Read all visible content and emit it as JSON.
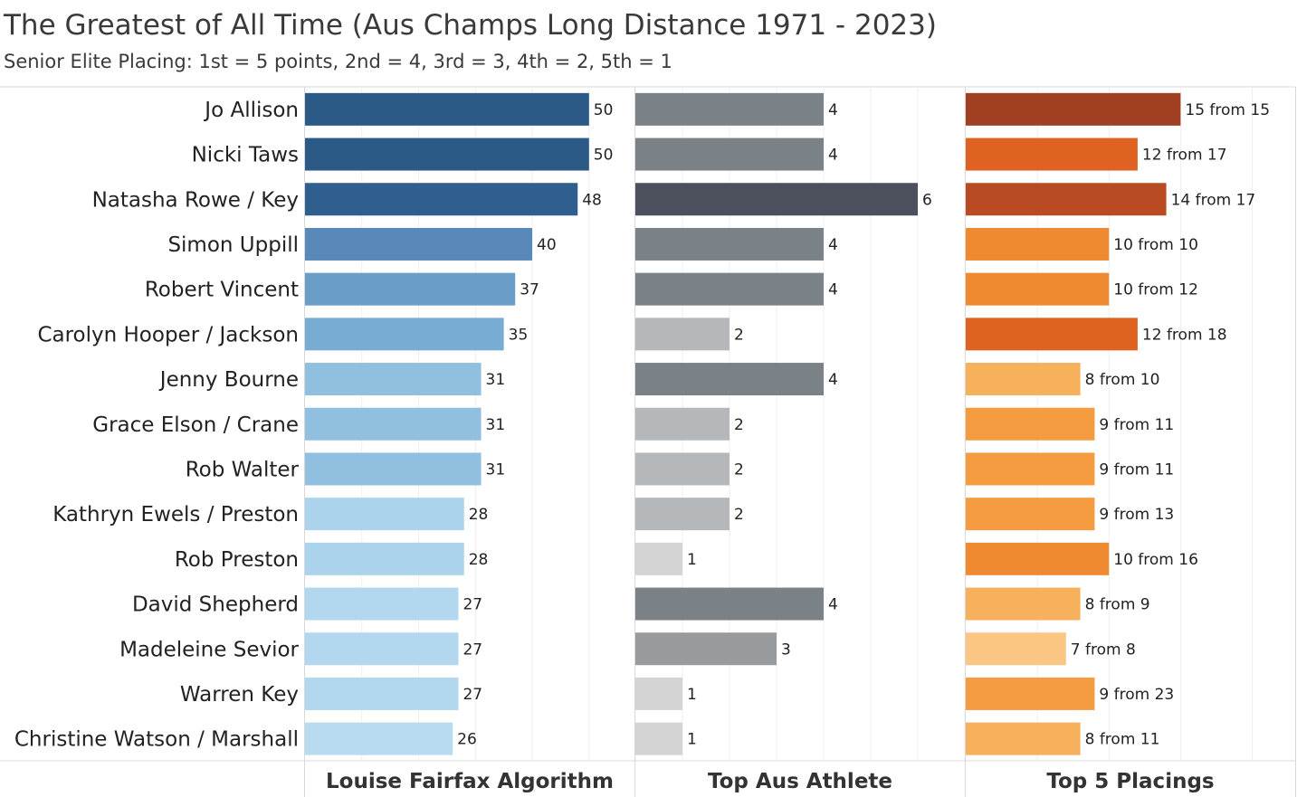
{
  "title": "The Greatest of All Time (Aus Champs Long Distance 1971 - 2023)",
  "subtitle": "Senior Elite Placing: 1st = 5 points, 2nd = 4, 3rd = 3, 4th = 2, 5th = 1",
  "chart_data": {
    "type": "bar",
    "orientation": "horizontal",
    "categories": [
      "Jo Allison",
      "Nicki Taws",
      "Natasha Rowe / Key",
      "Simon Uppill",
      "Robert Vincent",
      "Carolyn Hooper / Jackson",
      "Jenny Bourne",
      "Grace Elson / Crane",
      "Rob Walter",
      "Kathryn Ewels / Preston",
      "Rob Preston",
      "David Shepherd",
      "Madeleine Sevior",
      "Warren Key",
      "Christine Watson / Marshall"
    ],
    "series": [
      {
        "name": "Louise Fairfax Algorithm",
        "values": [
          50,
          50,
          48,
          40,
          37,
          35,
          31,
          31,
          31,
          28,
          28,
          27,
          27,
          27,
          26
        ],
        "labels": [
          "50",
          "50",
          "48",
          "40",
          "37",
          "35",
          "31",
          "31",
          "31",
          "28",
          "28",
          "27",
          "27",
          "27",
          "26"
        ],
        "xlim": [
          0,
          58
        ],
        "colors": [
          "#2b5a87",
          "#2b5a87",
          "#2f5f8e",
          "#5889b8",
          "#6a9ec8",
          "#78acd3",
          "#90bfe0",
          "#90bfe0",
          "#90bfe0",
          "#acd3ec",
          "#acd3ec",
          "#b2d7ee",
          "#b2d7ee",
          "#b2d7ee",
          "#b8dbf0"
        ]
      },
      {
        "name": "Top Aus Athlete",
        "values": [
          4,
          4,
          6,
          4,
          4,
          2,
          4,
          2,
          2,
          2,
          1,
          4,
          3,
          1,
          1
        ],
        "labels": [
          "4",
          "4",
          "6",
          "4",
          "4",
          "2",
          "4",
          "2",
          "2",
          "2",
          "1",
          "4",
          "3",
          "1",
          "1"
        ],
        "xlim": [
          0,
          7
        ],
        "colors": [
          "#7a8287",
          "#7a8287",
          "#4b505c",
          "#7a8287",
          "#7a8287",
          "#b5b8ba",
          "#7a8287",
          "#b5b8ba",
          "#b5b8ba",
          "#b5b8ba",
          "#d4d4d4",
          "#7a8287",
          "#979b9e",
          "#d4d4d4",
          "#d4d4d4"
        ]
      },
      {
        "name": "Top 5 Placings",
        "values": [
          15,
          12,
          14,
          10,
          10,
          12,
          8,
          9,
          9,
          9,
          10,
          8,
          7,
          9,
          8
        ],
        "labels": [
          "15 from 15",
          "12 from 17",
          "14 from 17",
          "10 from 10",
          "10 from 12",
          "12 from 18",
          "8 from 10",
          "9 from 11",
          "9 from 11",
          "9 from 13",
          "10 from 16",
          "8 from 9",
          "7 from 8",
          "9 from 23",
          "8 from 11"
        ],
        "xlim": [
          0,
          23
        ],
        "colors": [
          "#a03f22",
          "#df6222",
          "#b94b23",
          "#f08a30",
          "#f08a30",
          "#df6222",
          "#f7b05c",
          "#f59c40",
          "#f59c40",
          "#f59c40",
          "#f08a30",
          "#f7b05c",
          "#fbc583",
          "#f59c40",
          "#f7b05c"
        ]
      }
    ],
    "grid": true,
    "xlabel": "",
    "ylabel": ""
  }
}
